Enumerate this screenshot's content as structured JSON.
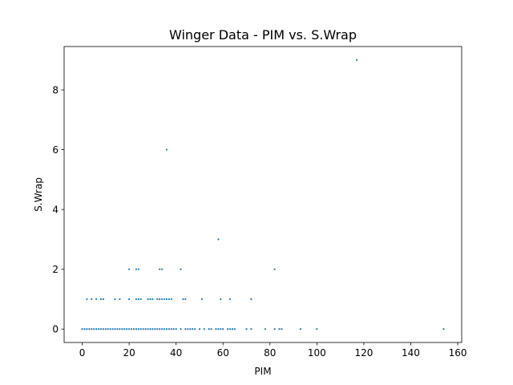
{
  "chart_data": {
    "type": "scatter",
    "title": "Winger Data - PIM vs. S.Wrap",
    "xlabel": "PIM",
    "ylabel": "S.Wrap",
    "xlim": [
      -7.7,
      161.7
    ],
    "ylim": [
      -0.45,
      9.45
    ],
    "xticks": [
      0,
      20,
      40,
      60,
      80,
      100,
      120,
      140,
      160
    ],
    "yticks": [
      0,
      2,
      4,
      6,
      8
    ],
    "grid": false,
    "legend": "none",
    "marker_color": "#1f77b4",
    "points": [
      [
        0,
        0
      ],
      [
        1,
        0
      ],
      [
        2,
        0
      ],
      [
        3,
        0
      ],
      [
        4,
        0
      ],
      [
        5,
        0
      ],
      [
        6,
        0
      ],
      [
        7,
        0
      ],
      [
        8,
        0
      ],
      [
        9,
        0
      ],
      [
        10,
        0
      ],
      [
        11,
        0
      ],
      [
        12,
        0
      ],
      [
        13,
        0
      ],
      [
        14,
        0
      ],
      [
        15,
        0
      ],
      [
        16,
        0
      ],
      [
        17,
        0
      ],
      [
        18,
        0
      ],
      [
        19,
        0
      ],
      [
        20,
        0
      ],
      [
        21,
        0
      ],
      [
        22,
        0
      ],
      [
        23,
        0
      ],
      [
        24,
        0
      ],
      [
        25,
        0
      ],
      [
        26,
        0
      ],
      [
        27,
        0
      ],
      [
        28,
        0
      ],
      [
        29,
        0
      ],
      [
        30,
        0
      ],
      [
        31,
        0
      ],
      [
        32,
        0
      ],
      [
        33,
        0
      ],
      [
        34,
        0
      ],
      [
        35,
        0
      ],
      [
        36,
        0
      ],
      [
        37,
        0
      ],
      [
        38,
        0
      ],
      [
        39,
        0
      ],
      [
        40,
        0
      ],
      [
        42,
        0
      ],
      [
        44,
        0
      ],
      [
        45,
        0
      ],
      [
        46,
        0
      ],
      [
        47,
        0
      ],
      [
        48,
        0
      ],
      [
        50,
        0
      ],
      [
        52,
        0
      ],
      [
        54,
        0
      ],
      [
        55,
        0
      ],
      [
        57,
        0
      ],
      [
        58,
        0
      ],
      [
        59,
        0
      ],
      [
        60,
        0
      ],
      [
        62,
        0
      ],
      [
        63,
        0
      ],
      [
        64,
        0
      ],
      [
        65,
        0
      ],
      [
        70,
        0
      ],
      [
        72,
        0
      ],
      [
        78,
        0
      ],
      [
        82,
        0
      ],
      [
        84,
        0
      ],
      [
        85,
        0
      ],
      [
        93,
        0
      ],
      [
        100,
        0
      ],
      [
        154,
        0
      ],
      [
        2,
        1
      ],
      [
        4,
        1
      ],
      [
        6,
        1
      ],
      [
        8,
        1
      ],
      [
        9,
        1
      ],
      [
        14,
        1
      ],
      [
        16,
        1
      ],
      [
        20,
        1
      ],
      [
        23,
        1
      ],
      [
        24,
        1
      ],
      [
        25,
        1
      ],
      [
        28,
        1
      ],
      [
        29,
        1
      ],
      [
        30,
        1
      ],
      [
        32,
        1
      ],
      [
        33,
        1
      ],
      [
        34,
        1
      ],
      [
        35,
        1
      ],
      [
        36,
        1
      ],
      [
        37,
        1
      ],
      [
        38,
        1
      ],
      [
        43,
        1
      ],
      [
        44,
        1
      ],
      [
        51,
        1
      ],
      [
        59,
        1
      ],
      [
        63,
        1
      ],
      [
        72,
        1
      ],
      [
        20,
        2
      ],
      [
        23,
        2
      ],
      [
        24,
        2
      ],
      [
        33,
        2
      ],
      [
        34,
        2
      ],
      [
        42,
        2
      ],
      [
        82,
        2
      ],
      [
        58,
        3
      ],
      [
        36,
        6
      ],
      [
        117,
        9
      ]
    ]
  }
}
